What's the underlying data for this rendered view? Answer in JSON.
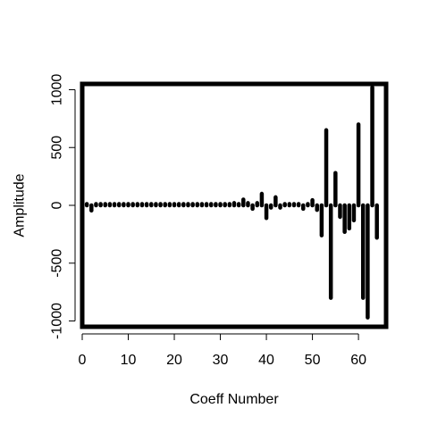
{
  "chart_data": {
    "type": "bar",
    "title": "",
    "xlabel": "Coeff Number",
    "ylabel": "Amplitude",
    "xlim": [
      0,
      66
    ],
    "ylim": [
      -1050,
      1050
    ],
    "x_ticks": [
      0,
      10,
      20,
      30,
      40,
      50,
      60
    ],
    "y_ticks": [
      -1000,
      -500,
      0,
      500,
      1000
    ],
    "grid": false,
    "legend": "none",
    "color": "#000000",
    "series": [
      {
        "x": [
          1,
          2,
          3,
          4,
          5,
          6,
          7,
          8,
          9,
          10,
          11,
          12,
          13,
          14,
          15,
          16,
          17,
          18,
          19,
          20,
          21,
          22,
          23,
          24,
          25,
          26,
          27,
          28,
          29,
          30,
          31,
          32,
          33,
          34,
          35,
          36,
          37,
          38,
          39,
          40,
          41,
          42,
          43,
          44,
          45,
          46,
          47,
          48,
          49,
          50,
          51,
          52,
          53,
          54,
          55,
          56,
          57,
          58,
          59,
          60,
          61,
          62,
          63,
          64
        ],
        "values": [
          5,
          -45,
          -15,
          10,
          -10,
          -5,
          -5,
          -8,
          -5,
          -5,
          -5,
          -5,
          -5,
          -5,
          -12,
          -10,
          5,
          -10,
          -5,
          5,
          -5,
          -5,
          -5,
          -5,
          -5,
          -5,
          -5,
          -5,
          -8,
          -5,
          -5,
          -5,
          20,
          -15,
          50,
          20,
          -30,
          20,
          100,
          -110,
          -20,
          70,
          -20,
          15,
          -5,
          -10,
          -5,
          -30,
          -10,
          45,
          -40,
          -260,
          650,
          -800,
          280,
          -100,
          -230,
          -200,
          -130,
          700,
          -800,
          -970,
          1020,
          -280
        ]
      }
    ]
  }
}
